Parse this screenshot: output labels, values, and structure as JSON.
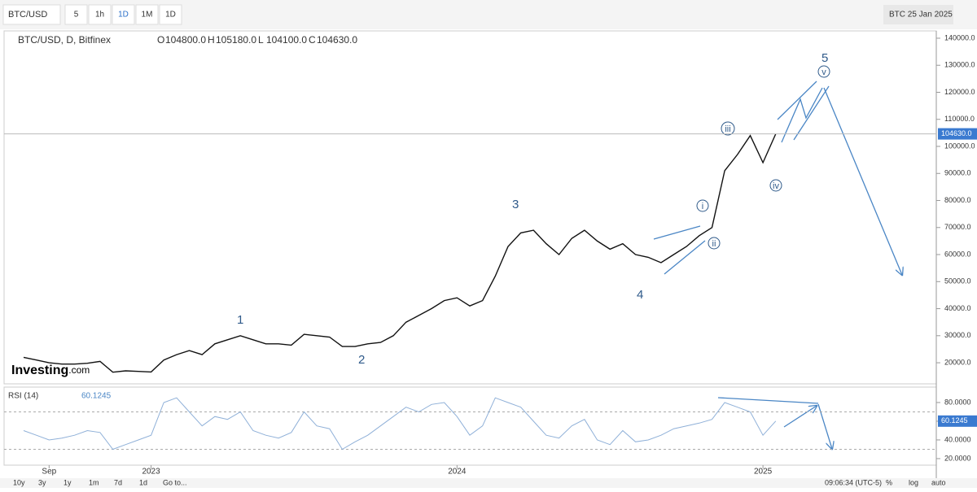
{
  "toolbar": {
    "symbol": "BTC/USD",
    "intervals": [
      "5",
      "1h",
      "1D",
      "1M",
      "1D"
    ],
    "snapshot": "BTC 25 Jan 2025"
  },
  "legend": {
    "title": "BTC/USD, D, Bitfinex",
    "ohlc": [
      [
        "O",
        "104800.0"
      ],
      [
        "H",
        "105180.0"
      ],
      [
        "L",
        "104100.0"
      ],
      [
        "C",
        "104630.0"
      ]
    ]
  },
  "logo": {
    "brand": "Investing",
    "suffix": ".com"
  },
  "annotations": {
    "waves": [
      "1",
      "2",
      "3",
      "4",
      "5"
    ],
    "subwaves": [
      "i",
      "ii",
      "iii",
      "iv",
      "v"
    ]
  },
  "rsi_legend": {
    "name": "RSI (14)"
  },
  "footer": {
    "ranges": [
      "10y",
      "3y",
      "1y",
      "1m",
      "7d",
      "1d"
    ],
    "goto": "Go to...",
    "time": "09:06:34 (UTC-5)",
    "options": [
      "%",
      "log",
      "auto"
    ]
  },
  "chart_data": [
    {
      "type": "line",
      "color": "#111111",
      "grid": false,
      "categories": [
        null,
        null,
        "Sep",
        null,
        null,
        null,
        null,
        null,
        null,
        null,
        "2023",
        null,
        null,
        null,
        null,
        null,
        null,
        null,
        null,
        null,
        null,
        null,
        null,
        null,
        null,
        null,
        null,
        null,
        null,
        null,
        null,
        null,
        null,
        null,
        "2024",
        null,
        null,
        null,
        null,
        null,
        null,
        null,
        null,
        null,
        null,
        null,
        null,
        null,
        null,
        null,
        null,
        null,
        null,
        null,
        null,
        null,
        null,
        null,
        "2025",
        null,
        null,
        null,
        null,
        null,
        null,
        null,
        null,
        null,
        null,
        null,
        null
      ],
      "values": [
        22000,
        21000,
        20000,
        19500,
        19500,
        19800,
        20500,
        16500,
        17000,
        16800,
        16600,
        21000,
        23000,
        24500,
        23000,
        27000,
        28500,
        30000,
        28500,
        27000,
        27000,
        26500,
        30500,
        30000,
        29500,
        26000,
        26000,
        27000,
        27500,
        30000,
        35000,
        37500,
        40000,
        43000,
        44000,
        41000,
        43000,
        52000,
        63000,
        68000,
        69000,
        64000,
        60000,
        66000,
        69000,
        65000,
        62000,
        64000,
        60000,
        59000,
        57000,
        60000,
        63000,
        67000,
        70000,
        91000,
        97000,
        104000,
        94000,
        104630,
        null,
        null,
        null,
        null,
        null,
        null,
        null,
        null,
        null,
        null,
        null
      ],
      "last_label": "104630.0",
      "ylim": [
        12200,
        142700
      ],
      "yticks": [
        {
          "value": 20000,
          "label": "20000.0"
        },
        {
          "value": 30000,
          "label": "30000.0"
        },
        {
          "value": 40000,
          "label": "40000.0"
        },
        {
          "value": 50000,
          "label": "50000.0"
        },
        {
          "value": 60000,
          "label": "60000.0"
        },
        {
          "value": 70000,
          "label": "70000.0"
        },
        {
          "value": 80000,
          "label": "80000.0"
        },
        {
          "value": 90000,
          "label": "90000.0"
        },
        {
          "value": 100000,
          "label": "100000.0"
        },
        {
          "value": 110000,
          "label": "110000.0"
        },
        {
          "value": 120000,
          "label": "120000.0"
        },
        {
          "value": 130000,
          "label": "130000.0"
        },
        {
          "value": 140000,
          "label": "140000.0"
        }
      ]
    },
    {
      "type": "line",
      "color": "#8fb0d8",
      "values": [
        50,
        45,
        40,
        42,
        45,
        50,
        48,
        30,
        35,
        40,
        45,
        80,
        85,
        70,
        55,
        65,
        62,
        70,
        50,
        45,
        42,
        48,
        70,
        55,
        52,
        30,
        38,
        45,
        55,
        65,
        75,
        70,
        78,
        80,
        65,
        45,
        55,
        85,
        80,
        75,
        60,
        45,
        42,
        55,
        62,
        40,
        35,
        50,
        38,
        40,
        45,
        52,
        55,
        58,
        62,
        80,
        75,
        70,
        45,
        60.1245,
        null,
        null,
        null,
        null,
        null,
        null,
        null,
        null,
        null,
        null,
        null
      ],
      "last_label": "60.1245",
      "bands": [
        30,
        70
      ],
      "ylim": [
        13,
        96.5
      ],
      "yticks": [
        {
          "value": 20,
          "label": "20.0000"
        },
        {
          "value": 40,
          "label": "40.0000"
        },
        {
          "value": 60,
          "label": "60.0000"
        },
        {
          "value": 80,
          "label": "80.0000"
        }
      ]
    }
  ]
}
